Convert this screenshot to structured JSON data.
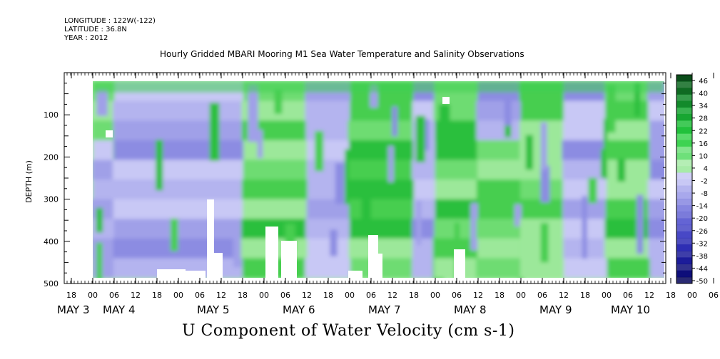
{
  "header": {
    "longitude": "LONGITUDE : 122W(-122)",
    "latitude": "LATITUDE : 36.8N",
    "year": "YEAR : 2012"
  },
  "chart_data": {
    "type": "heatmap",
    "title": "Hourly Gridded MBARI Mooring M1 Sea Water Temperature and Salinity Observations",
    "xlabel": "U Component of Water Velocity (cm s-1)",
    "ylabel": "DEPTH (m)",
    "ylim": [
      500,
      0
    ],
    "y_ticks": [
      100,
      200,
      300,
      400,
      500
    ],
    "x_hour_ticks": [
      "18",
      "00",
      "06",
      "12",
      "18",
      "00",
      "06",
      "12",
      "18",
      "00",
      "06",
      "12",
      "18",
      "00",
      "06",
      "12",
      "18",
      "00",
      "06",
      "12",
      "18",
      "00",
      "06",
      "12",
      "18",
      "00",
      "06",
      "12",
      "18",
      "00",
      "06",
      "12"
    ],
    "x_day_labels": [
      "MAY 3",
      "MAY 4",
      "MAY 5",
      "MAY 6",
      "MAY 7",
      "MAY 8",
      "MAY 9",
      "MAY 10"
    ],
    "colorbar": {
      "labels": [
        "46",
        "40",
        "34",
        "28",
        "22",
        "16",
        "10",
        "4",
        "-2",
        "-8",
        "-14",
        "-20",
        "-26",
        "-32",
        "-38",
        "-44",
        "-50"
      ],
      "colors": [
        "#0a4d1a",
        "#0f6a22",
        "#138a2b",
        "#18a632",
        "#22c13c",
        "#3ed352",
        "#6ee07a",
        "#a8eba8",
        "#c8c8f5",
        "#a8a8ec",
        "#8686e0",
        "#6464d4",
        "#4848c6",
        "#2e2eb4",
        "#1c1c9a",
        "#0e0e7a",
        "#05055a"
      ]
    },
    "profiles": [
      {
        "start": "May 3 00",
        "end": "May 3 06",
        "upper": "positive",
        "deep": "negative"
      },
      {
        "start": "May 3 06",
        "end": "May 4 18",
        "upper": "negative",
        "deep": "negative"
      },
      {
        "start": "May 4 18",
        "end": "May 5 12",
        "upper": "positive",
        "deep": "positive"
      },
      {
        "start": "May 5 12",
        "end": "May 6 00",
        "upper": "negative",
        "deep": "negative"
      },
      {
        "start": "May 6 00",
        "end": "May 6 18",
        "upper": "positive",
        "deep": "positive"
      },
      {
        "start": "May 6 18",
        "end": "May 7 00",
        "upper": "negative",
        "deep": "negative"
      },
      {
        "start": "May 7 00",
        "end": "May 7 12",
        "upper": "positive",
        "deep": "positive"
      },
      {
        "start": "May 7 12",
        "end": "May 8 00",
        "upper": "negative",
        "deep": "positive"
      },
      {
        "start": "May 8 00",
        "end": "May 8 12",
        "upper": "positive",
        "deep": "positive"
      },
      {
        "start": "May 8 12",
        "end": "May 9 00",
        "upper": "negative",
        "deep": "negative"
      },
      {
        "start": "May 9 00",
        "end": "May 9 12",
        "upper": "positive",
        "deep": "positive"
      },
      {
        "start": "May 9 12",
        "end": "May 10 00",
        "upper": "negative",
        "deep": "negative"
      },
      {
        "start": "May 10 00",
        "end": "May 10 15",
        "upper": "positive",
        "deep": "negative"
      }
    ]
  }
}
